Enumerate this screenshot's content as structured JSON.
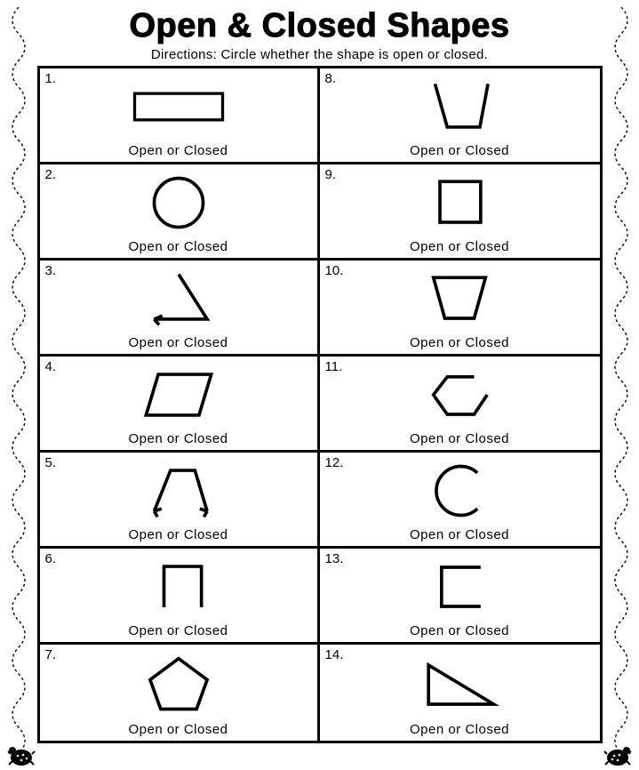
{
  "page": {
    "title": "Open & Closed Shapes",
    "directions": "Directions: Circle whether the shape is open or closed.",
    "background_color": "#ffffff",
    "text_color": "#000000",
    "title_fontsize": 38,
    "directions_fontsize": 15,
    "border_style": "dashed-curly",
    "border_color": "#000000",
    "stroke_width": 4,
    "cell_border_color": "#000000",
    "cell_border_width": 3,
    "grid_rows": 7,
    "grid_cols": 2,
    "cell_label": "Open or Closed",
    "label_fontsize": 15
  },
  "shapes": [
    {
      "n": "1.",
      "type": "rectangle",
      "closed": true,
      "stroke": "#000000",
      "sw": 4
    },
    {
      "n": "8.",
      "type": "open-trapezoid-top",
      "closed": false,
      "stroke": "#000000",
      "sw": 4
    },
    {
      "n": "2.",
      "type": "circle",
      "closed": true,
      "stroke": "#000000",
      "sw": 4
    },
    {
      "n": "9.",
      "type": "square",
      "closed": true,
      "stroke": "#000000",
      "sw": 4
    },
    {
      "n": "3.",
      "type": "open-triangle",
      "closed": false,
      "stroke": "#000000",
      "sw": 4
    },
    {
      "n": "10.",
      "type": "trapezoid-down",
      "closed": true,
      "stroke": "#000000",
      "sw": 4
    },
    {
      "n": "4.",
      "type": "parallelogram",
      "closed": true,
      "stroke": "#000000",
      "sw": 4
    },
    {
      "n": "11.",
      "type": "open-hexagon",
      "closed": false,
      "stroke": "#000000",
      "sw": 4
    },
    {
      "n": "5.",
      "type": "open-pentagon-arrows",
      "closed": false,
      "stroke": "#000000",
      "sw": 4
    },
    {
      "n": "12.",
      "type": "open-circle",
      "closed": false,
      "stroke": "#000000",
      "sw": 4
    },
    {
      "n": "6.",
      "type": "open-square-bottom",
      "closed": false,
      "stroke": "#000000",
      "sw": 4
    },
    {
      "n": "13.",
      "type": "open-square-right",
      "closed": false,
      "stroke": "#000000",
      "sw": 4
    },
    {
      "n": "7.",
      "type": "pentagon",
      "closed": true,
      "stroke": "#000000",
      "sw": 4
    },
    {
      "n": "14.",
      "type": "right-triangle",
      "closed": true,
      "stroke": "#000000",
      "sw": 4
    }
  ]
}
